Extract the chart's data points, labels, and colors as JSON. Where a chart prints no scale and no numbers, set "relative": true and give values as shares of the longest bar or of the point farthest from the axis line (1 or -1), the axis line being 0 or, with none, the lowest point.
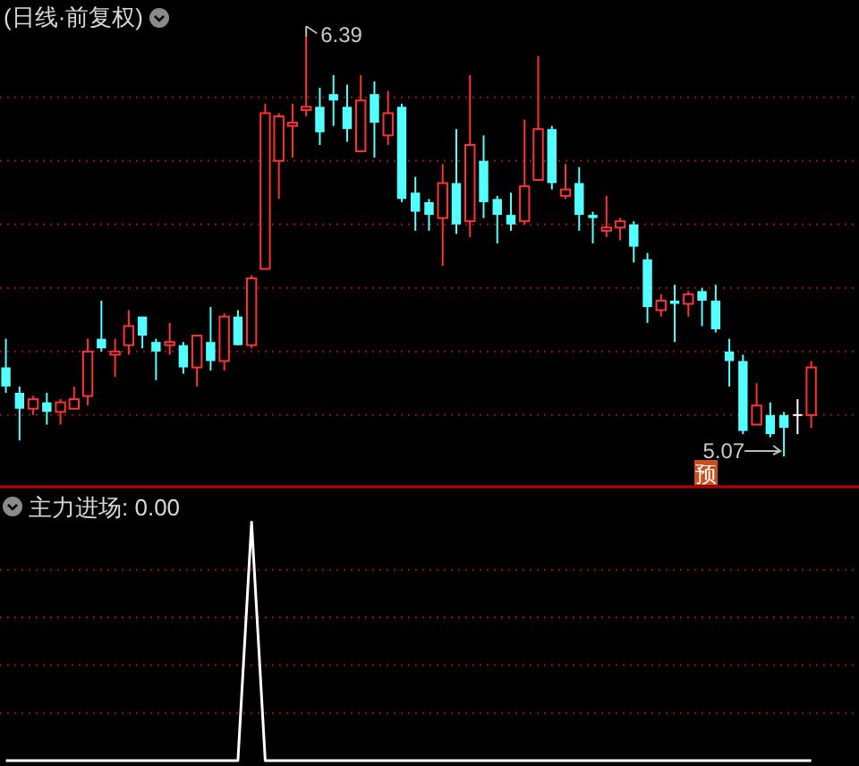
{
  "chart_data": [
    {
      "type": "candlestick",
      "title": "(日线·前复权)",
      "categories": [
        null,
        null,
        null,
        null,
        null,
        null,
        null,
        null,
        null,
        null,
        null,
        null,
        null,
        null,
        null,
        null,
        null,
        null,
        null,
        null,
        null,
        null,
        null,
        null,
        null,
        null,
        null,
        null,
        null,
        null,
        null,
        null,
        null,
        null,
        null,
        null,
        null,
        null,
        null,
        null,
        null,
        null,
        null,
        null,
        null,
        null,
        null,
        null,
        null,
        null,
        null,
        null,
        null,
        null,
        null,
        null,
        null,
        null,
        null,
        null
      ],
      "ohlc": [
        [
          5.35,
          5.44,
          5.27,
          5.29
        ],
        [
          5.27,
          5.29,
          5.12,
          5.22
        ],
        [
          5.22,
          5.26,
          5.2,
          5.25
        ],
        [
          5.24,
          5.27,
          5.17,
          5.21
        ],
        [
          5.21,
          5.25,
          5.17,
          5.24
        ],
        [
          5.22,
          5.29,
          5.22,
          5.25
        ],
        [
          5.26,
          5.44,
          5.23,
          5.4
        ],
        [
          5.44,
          5.56,
          5.4,
          5.41
        ],
        [
          5.39,
          5.44,
          5.32,
          5.4
        ],
        [
          5.42,
          5.53,
          5.39,
          5.48
        ],
        [
          5.51,
          5.51,
          5.41,
          5.45
        ],
        [
          5.43,
          5.44,
          5.31,
          5.4
        ],
        [
          5.42,
          5.49,
          5.39,
          5.43
        ],
        [
          5.42,
          5.43,
          5.33,
          5.35
        ],
        [
          5.35,
          5.45,
          5.29,
          5.45
        ],
        [
          5.43,
          5.54,
          5.34,
          5.37
        ],
        [
          5.37,
          5.52,
          5.34,
          5.51
        ],
        [
          5.51,
          5.53,
          5.42,
          5.42
        ],
        [
          5.42,
          5.64,
          5.41,
          5.63
        ],
        [
          5.66,
          6.18,
          5.66,
          6.15
        ],
        [
          6.0,
          6.15,
          5.88,
          6.14
        ],
        [
          6.11,
          6.18,
          6.01,
          6.12
        ],
        [
          6.16,
          6.39,
          6.14,
          6.17
        ],
        [
          6.17,
          6.23,
          6.05,
          6.09
        ],
        [
          6.21,
          6.27,
          6.11,
          6.19
        ],
        [
          6.17,
          6.24,
          6.06,
          6.1
        ],
        [
          6.03,
          6.27,
          6.03,
          6.19
        ],
        [
          6.21,
          6.25,
          6.01,
          6.12
        ],
        [
          6.08,
          6.22,
          6.05,
          6.15
        ],
        [
          6.17,
          6.18,
          5.87,
          5.88
        ],
        [
          5.9,
          5.95,
          5.78,
          5.84
        ],
        [
          5.87,
          5.88,
          5.78,
          5.83
        ],
        [
          5.82,
          5.99,
          5.67,
          5.93
        ],
        [
          5.93,
          6.1,
          5.77,
          5.8
        ],
        [
          5.81,
          6.27,
          5.76,
          6.05
        ],
        [
          6.0,
          6.08,
          5.82,
          5.87
        ],
        [
          5.88,
          5.89,
          5.74,
          5.83
        ],
        [
          5.83,
          5.9,
          5.78,
          5.8
        ],
        [
          5.81,
          6.13,
          5.8,
          5.92
        ],
        [
          5.94,
          6.33,
          5.94,
          6.1
        ],
        [
          6.1,
          6.11,
          5.91,
          5.93
        ],
        [
          5.89,
          5.99,
          5.88,
          5.91
        ],
        [
          5.93,
          5.98,
          5.78,
          5.83
        ],
        [
          5.83,
          5.84,
          5.74,
          5.82
        ],
        [
          5.78,
          5.89,
          5.76,
          5.79
        ],
        [
          5.79,
          5.82,
          5.75,
          5.81
        ],
        [
          5.8,
          5.81,
          5.68,
          5.73
        ],
        [
          5.69,
          5.71,
          5.49,
          5.54
        ],
        [
          5.53,
          5.58,
          5.51,
          5.56
        ],
        [
          5.56,
          5.61,
          5.43,
          5.55
        ],
        [
          5.55,
          5.59,
          5.51,
          5.58
        ],
        [
          5.59,
          5.6,
          5.48,
          5.56
        ],
        [
          5.56,
          5.61,
          5.46,
          5.47
        ],
        [
          5.4,
          5.44,
          5.29,
          5.37
        ],
        [
          5.37,
          5.39,
          5.14,
          5.15
        ],
        [
          5.17,
          5.3,
          5.17,
          5.23
        ],
        [
          5.2,
          5.24,
          5.13,
          5.14
        ],
        [
          5.2,
          5.21,
          5.07,
          5.16
        ],
        [
          5.2,
          5.25,
          5.14,
          5.2
        ],
        [
          5.2,
          5.37,
          5.16,
          5.35
        ]
      ],
      "colors": [
        "#54ffff",
        "#54ffff",
        "#ff3232",
        "#54ffff",
        "#ff3232",
        "#ff3232",
        "#ff3232",
        "#54ffff",
        "#ff3232",
        "#ff3232",
        "#54ffff",
        "#54ffff",
        "#ff3232",
        "#54ffff",
        "#ff3232",
        "#54ffff",
        "#ff3232",
        "#54ffff",
        "#ff3232",
        "#ff3232",
        "#ff3232",
        "#ff3232",
        "#ff3232",
        "#54ffff",
        "#54ffff",
        "#54ffff",
        "#ff3232",
        "#54ffff",
        "#ff3232",
        "#54ffff",
        "#54ffff",
        "#54ffff",
        "#ff3232",
        "#54ffff",
        "#ff3232",
        "#54ffff",
        "#54ffff",
        "#54ffff",
        "#ff3232",
        "#ff3232",
        "#54ffff",
        "#ff3232",
        "#54ffff",
        "#54ffff",
        "#ff3232",
        "#ff3232",
        "#54ffff",
        "#54ffff",
        "#ff3232",
        "#54ffff",
        "#ff3232",
        "#54ffff",
        "#54ffff",
        "#54ffff",
        "#54ffff",
        "#ff3232",
        "#54ffff",
        "#54ffff",
        "#ffffff",
        "#ff3232"
      ],
      "yticks": [
        {
          "value": 5.2,
          "label": null
        },
        {
          "value": 5.4,
          "label": null
        },
        {
          "value": 5.6,
          "label": null
        },
        {
          "value": 5.8,
          "label": null
        },
        {
          "value": 6.0,
          "label": null
        },
        {
          "value": 6.2,
          "label": null
        }
      ],
      "grid": "y",
      "annotations": [
        "6.39",
        "5.07",
        "预"
      ]
    },
    {
      "type": "line",
      "title": "主力进场: 0.00",
      "categories": [
        null,
        null,
        null,
        null,
        null,
        null,
        null,
        null,
        null,
        null,
        null,
        null,
        null,
        null,
        null,
        null,
        null,
        null,
        null,
        null,
        null,
        null,
        null,
        null,
        null,
        null,
        null,
        null,
        null,
        null,
        null,
        null,
        null,
        null,
        null,
        null,
        null,
        null,
        null,
        null,
        null,
        null,
        null,
        null,
        null,
        null,
        null,
        null,
        null,
        null,
        null,
        null,
        null,
        null,
        null,
        null,
        null,
        null,
        null,
        null
      ],
      "relative": true,
      "ref_lines": [
        {
          "axis": "y",
          "value": 0.2,
          "color": "#a01010",
          "line_style": "dotted"
        },
        {
          "axis": "y",
          "value": 0.4,
          "color": "#a01010",
          "line_style": "dotted"
        },
        {
          "axis": "y",
          "value": 0.6,
          "color": "#a01010",
          "line_style": "dotted"
        },
        {
          "axis": "y",
          "value": 0.8,
          "color": "#a01010",
          "line_style": "dotted"
        }
      ],
      "series": [
        {
          "color": "#ffffff",
          "values": [
            0,
            0,
            0,
            0,
            0,
            0,
            0,
            0,
            0,
            0,
            0,
            0,
            0,
            0,
            0,
            0,
            0,
            0,
            1,
            0,
            0,
            0,
            0,
            0,
            0,
            0,
            0,
            0,
            0,
            0,
            0,
            0,
            0,
            0,
            0,
            0,
            0,
            0,
            0,
            0,
            0,
            0,
            0,
            0,
            0,
            0,
            0,
            0,
            0,
            0,
            0,
            0,
            0,
            0,
            0,
            0,
            0,
            0,
            0,
            0
          ]
        }
      ]
    }
  ]
}
